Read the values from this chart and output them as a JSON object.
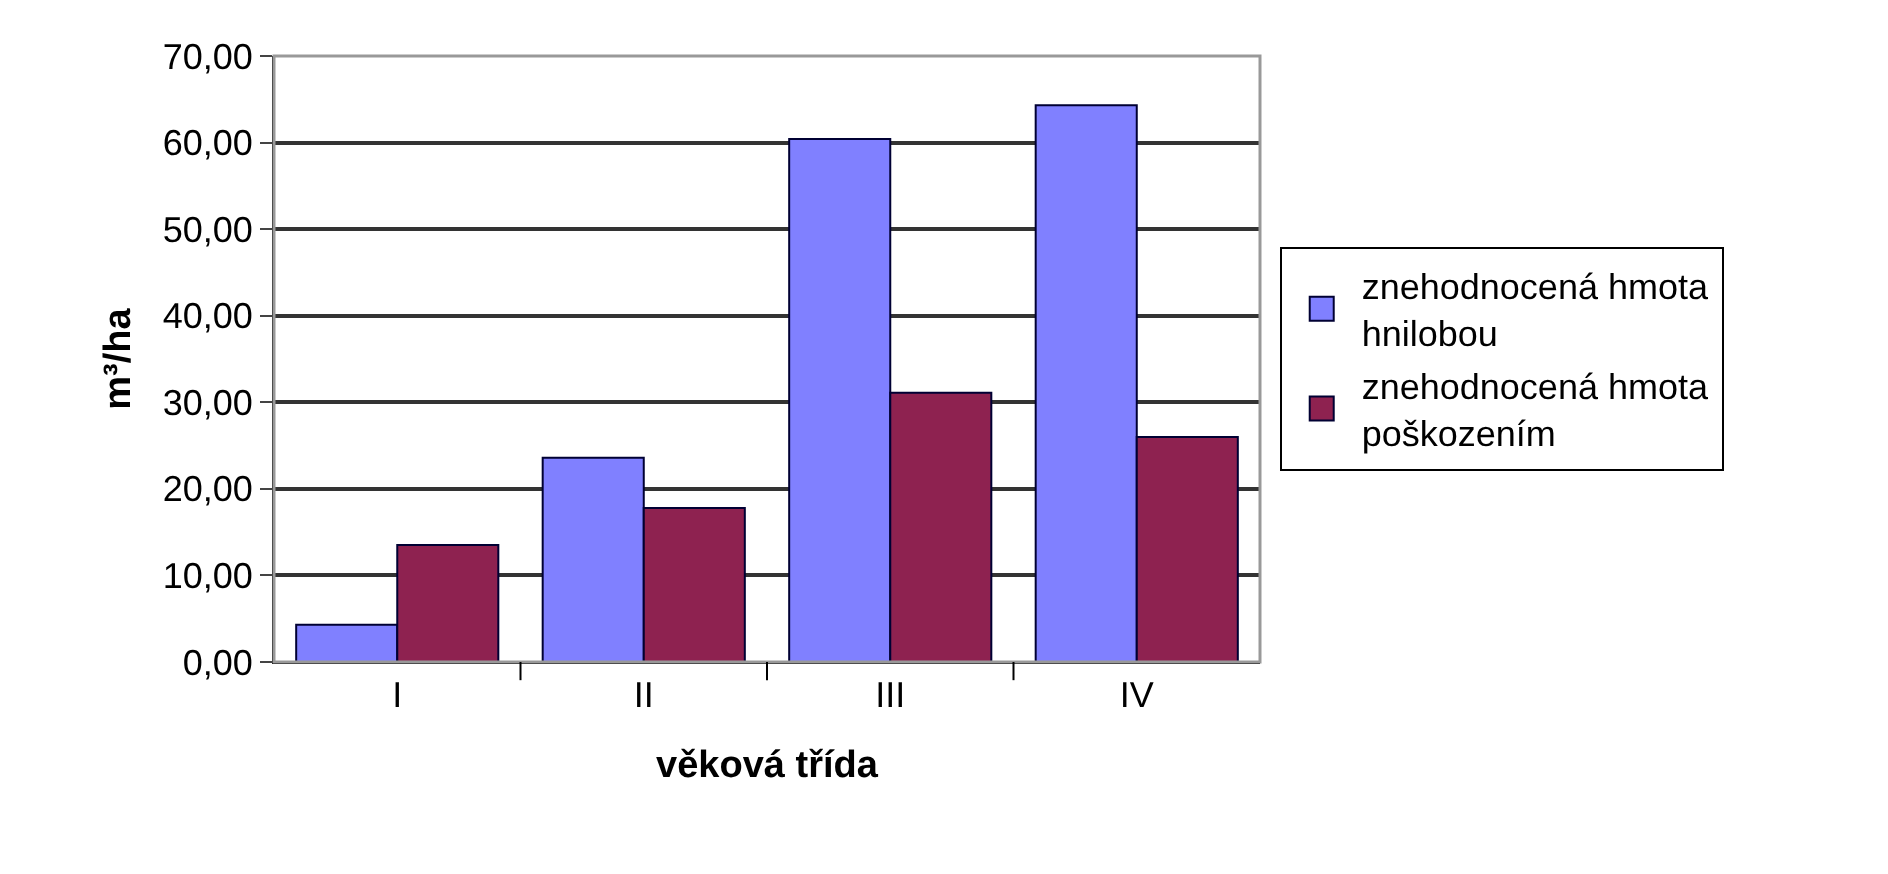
{
  "chart_data": {
    "type": "bar",
    "xlabel": "věková třída",
    "ylabel": "m³/ha",
    "categories": [
      "I",
      "II",
      "III",
      "IV"
    ],
    "series": [
      {
        "name": "znehodnocená hmota\nhnilobou",
        "color": "#8080ff",
        "values": [
          4.3,
          23.6,
          60.4,
          64.3
        ]
      },
      {
        "name": "znehodnocená hmota\npoškozením",
        "color": "#8e2250",
        "values": [
          13.5,
          17.8,
          31.1,
          26.0
        ]
      }
    ],
    "ylim": [
      0,
      70
    ],
    "yticks": [
      {
        "value": 0,
        "label": "0,00"
      },
      {
        "value": 10,
        "label": "10,00"
      },
      {
        "value": 20,
        "label": "20,00"
      },
      {
        "value": 30,
        "label": "30,00"
      },
      {
        "value": 40,
        "label": "40,00"
      },
      {
        "value": 50,
        "label": "50,00"
      },
      {
        "value": 60,
        "label": "60,00"
      },
      {
        "value": 70,
        "label": "70,00"
      }
    ],
    "grid": "y",
    "legend": "right"
  }
}
